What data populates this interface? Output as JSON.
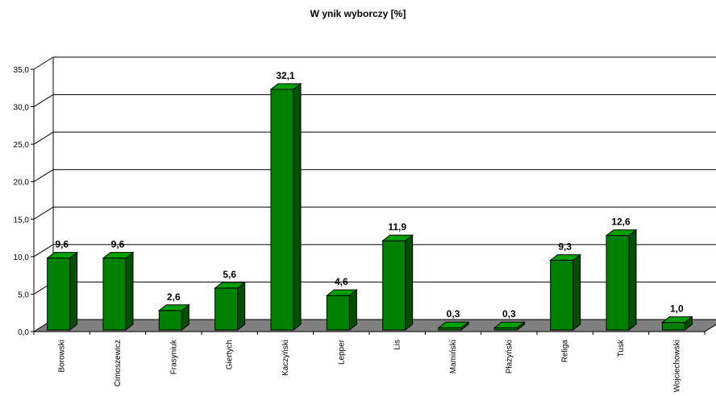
{
  "chart_data": {
    "type": "bar",
    "title": "W ynik wyborczy [%]",
    "categories": [
      "Borowski",
      "Cimoszewicz",
      "Frasyniuk",
      "Giertych",
      "Kaczyński",
      "Lepper",
      "Lis",
      "Mamiński",
      "Płażyński",
      "Religa",
      "Tusk",
      "Wojciechowski"
    ],
    "values": [
      9.6,
      9.6,
      2.6,
      5.6,
      32.1,
      4.6,
      11.9,
      0.3,
      0.3,
      9.3,
      12.6,
      1.0
    ],
    "value_labels": [
      "9,6",
      "9,6",
      "2,6",
      "5,6",
      "32,1",
      "4,6",
      "11,9",
      "0,3",
      "0,3",
      "9,3",
      "12,6",
      "1,0"
    ],
    "ylim": [
      0,
      35
    ],
    "y_ticks": [
      0,
      5,
      10,
      15,
      20,
      25,
      30,
      35
    ],
    "y_tick_labels": [
      "0,0",
      "5,0",
      "10,0",
      "15,0",
      "20,0",
      "25,0",
      "30,0",
      "35,0"
    ],
    "grid": true,
    "legend": "none",
    "xlabel": "",
    "ylabel": "",
    "colors": {
      "bar_front": "#008000",
      "bar_top": "#00a000",
      "bar_side": "#005000",
      "floor": "#808080",
      "grid": "#000000"
    }
  }
}
